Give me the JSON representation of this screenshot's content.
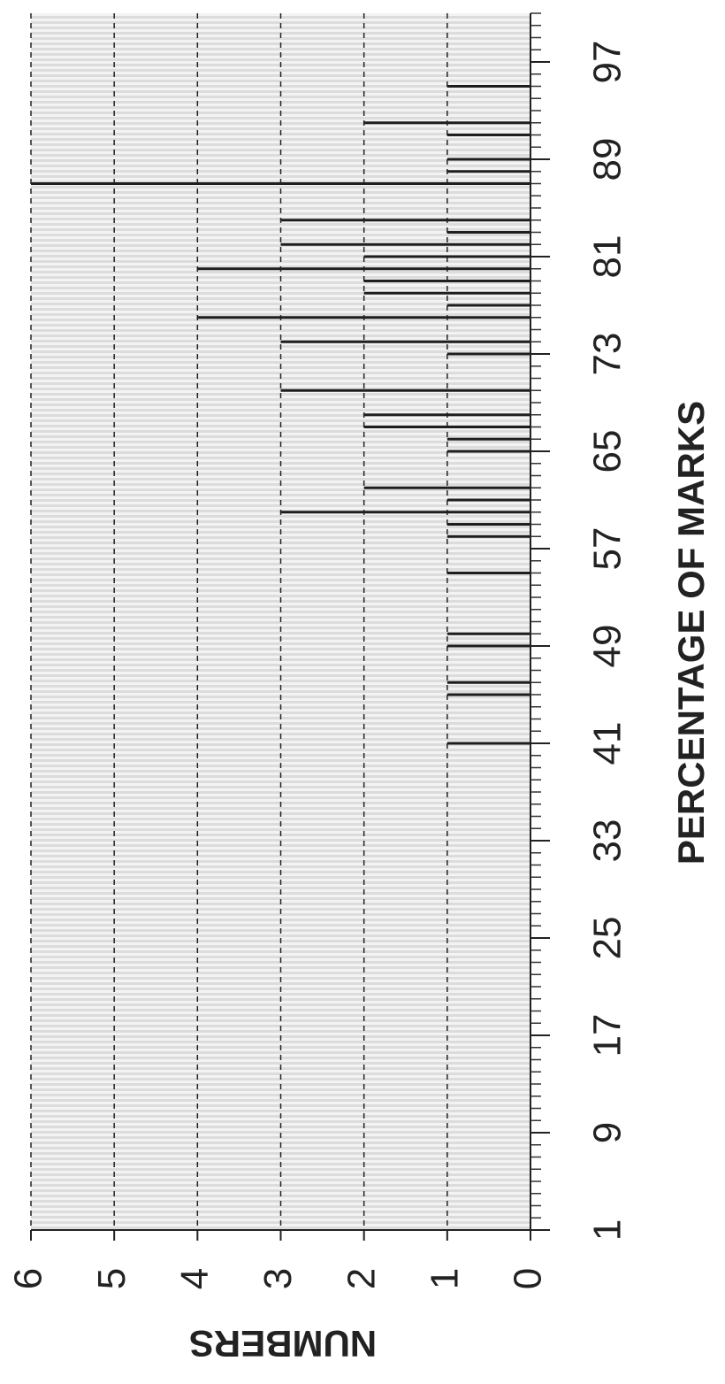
{
  "chart_data": {
    "type": "bar",
    "x_label": "PERCENTAGE OF MARKS",
    "y_label": "NUMBERS",
    "x": [
      95,
      92,
      91,
      89,
      88,
      87,
      84,
      83,
      82,
      81,
      80,
      79,
      78,
      77,
      76,
      74,
      73,
      70,
      68,
      67,
      66,
      65,
      62,
      61,
      60,
      59,
      58,
      55,
      50,
      49,
      46,
      45,
      41
    ],
    "values": [
      1,
      2,
      1,
      1,
      1,
      6,
      3,
      1,
      3,
      2,
      4,
      2,
      2,
      1,
      4,
      3,
      1,
      3,
      2,
      2,
      1,
      1,
      2,
      1,
      3,
      1,
      1,
      1,
      1,
      1,
      1,
      1,
      1
    ],
    "xlim": [
      1,
      101
    ],
    "xticks": [
      1,
      9,
      17,
      25,
      33,
      41,
      49,
      57,
      65,
      73,
      81,
      89,
      97
    ],
    "ylim": [
      0,
      6
    ],
    "yticks": [
      0,
      1,
      2,
      3,
      4,
      5,
      6
    ],
    "grid": true,
    "color": "#1e1e1e"
  }
}
